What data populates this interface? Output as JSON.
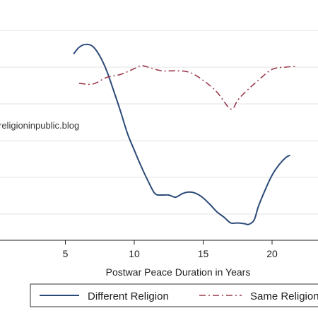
{
  "chart_data": {
    "type": "line",
    "title": "",
    "xlabel": "Postwar Peace Duration in Years",
    "ylabel": "",
    "xlim": [
      0,
      23
    ],
    "ylim": [
      0,
      300
    ],
    "x_ticks": [
      5,
      10,
      15,
      20
    ],
    "x_tick_labels": [
      "5",
      "10",
      "15",
      "20"
    ],
    "y_grid_values": [
      50,
      100,
      150,
      200,
      250,
      300
    ],
    "grid": true,
    "legend_position": "bottom",
    "annotation": "religioninpublic.blog",
    "series": [
      {
        "name": "Different Religion",
        "color": "#2c4a78",
        "style": "solid",
        "x": [
          5.6,
          6.0,
          6.5,
          7.0,
          7.5,
          8.0,
          8.5,
          9.0,
          9.5,
          10.0,
          10.5,
          11.0,
          11.5,
          12.0,
          12.5,
          13.0,
          13.5,
          14.0,
          14.5,
          15.0,
          15.5,
          16.0,
          16.5,
          17.0,
          17.5,
          18.0,
          18.3,
          18.7,
          19.0,
          19.5,
          20.0,
          20.5,
          21.0,
          21.3
        ],
        "y": [
          268,
          277,
          281,
          278,
          265,
          245,
          218,
          190,
          160,
          137,
          115,
          95,
          78,
          76,
          76,
          73,
          78,
          80,
          78,
          72,
          63,
          53,
          46,
          38,
          38,
          37,
          36,
          42,
          60,
          83,
          103,
          117,
          127,
          130
        ]
      },
      {
        "name": "Same Religion",
        "color": "#9a3a4c",
        "style": "dash-dot",
        "x": [
          6.0,
          7.0,
          8.0,
          9.0,
          10.0,
          10.5,
          11.0,
          12.0,
          13.0,
          14.0,
          15.0,
          16.0,
          17.0,
          17.5,
          18.0,
          19.0,
          20.0,
          21.0,
          21.7
        ],
        "y": [
          228,
          227,
          236,
          240,
          248,
          252,
          250,
          245,
          245,
          243,
          232,
          216,
          193,
          205,
          215,
          232,
          247,
          250,
          251
        ]
      }
    ]
  }
}
